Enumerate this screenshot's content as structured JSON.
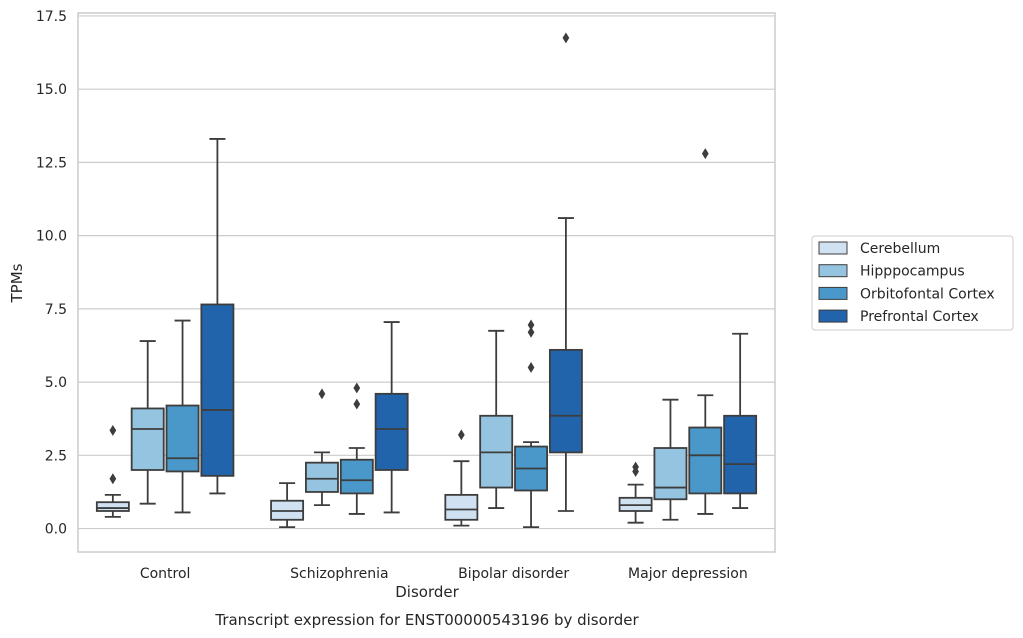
{
  "chart_data": {
    "type": "box",
    "title": "",
    "caption": "Transcript expression for ENST00000543196 by disorder",
    "xlabel": "Disorder",
    "ylabel": "TPMs",
    "ylim": [
      -0.8,
      17.6
    ],
    "yticks": [
      "0.0",
      "2.5",
      "5.0",
      "7.5",
      "10.0",
      "12.5",
      "15.0",
      "17.5"
    ],
    "ytick_values": [
      0,
      2.5,
      5,
      7.5,
      10,
      12.5,
      15,
      17.5
    ],
    "grid": "horizontal",
    "legend_position": "right",
    "categories": [
      "Control",
      "Schizophrenia",
      "Bipolar disorder",
      "Major depression"
    ],
    "series": [
      {
        "name": "Cerebellum",
        "color": "#d0e1f2",
        "boxes": [
          {
            "min": 0.4,
            "q1": 0.6,
            "median": 0.7,
            "q3": 0.9,
            "max": 1.15,
            "outliers": [
              1.7,
              3.35
            ]
          },
          {
            "min": 0.05,
            "q1": 0.3,
            "median": 0.6,
            "q3": 0.95,
            "max": 1.55,
            "outliers": []
          },
          {
            "min": 0.1,
            "q1": 0.3,
            "median": 0.65,
            "q3": 1.15,
            "max": 2.3,
            "outliers": [
              3.2
            ]
          },
          {
            "min": 0.2,
            "q1": 0.6,
            "median": 0.8,
            "q3": 1.05,
            "max": 1.5,
            "outliers": [
              1.95,
              2.1
            ]
          }
        ]
      },
      {
        "name": "Hipppocampus",
        "color": "#94c4df",
        "boxes": [
          {
            "min": 0.85,
            "q1": 2.0,
            "median": 3.4,
            "q3": 4.1,
            "max": 6.4,
            "outliers": []
          },
          {
            "min": 0.8,
            "q1": 1.25,
            "median": 1.7,
            "q3": 2.25,
            "max": 2.6,
            "outliers": [
              4.6
            ]
          },
          {
            "min": 0.7,
            "q1": 1.4,
            "median": 2.6,
            "q3": 3.85,
            "max": 6.75,
            "outliers": []
          },
          {
            "min": 0.3,
            "q1": 1.0,
            "median": 1.4,
            "q3": 2.75,
            "max": 4.4,
            "outliers": []
          }
        ]
      },
      {
        "name": "Orbitofontal Cortex",
        "color": "#4a98c9",
        "boxes": [
          {
            "min": 0.55,
            "q1": 1.95,
            "median": 2.4,
            "q3": 4.2,
            "max": 7.1,
            "outliers": []
          },
          {
            "min": 0.5,
            "q1": 1.2,
            "median": 1.65,
            "q3": 2.35,
            "max": 2.75,
            "outliers": [
              4.25,
              4.8
            ]
          },
          {
            "min": 0.05,
            "q1": 1.3,
            "median": 2.05,
            "q3": 2.8,
            "max": 2.95,
            "outliers": [
              5.5,
              6.7,
              6.95
            ]
          },
          {
            "min": 0.5,
            "q1": 1.2,
            "median": 2.5,
            "q3": 3.45,
            "max": 4.55,
            "outliers": [
              12.8
            ]
          }
        ]
      },
      {
        "name": "Prefrontal Cortex",
        "color": "#2164ab",
        "boxes": [
          {
            "min": 1.2,
            "q1": 1.8,
            "median": 4.05,
            "q3": 7.65,
            "max": 13.3,
            "outliers": []
          },
          {
            "min": 0.55,
            "q1": 2.0,
            "median": 3.4,
            "q3": 4.6,
            "max": 7.05,
            "outliers": []
          },
          {
            "min": 0.6,
            "q1": 2.6,
            "median": 3.85,
            "q3": 6.1,
            "max": 10.6,
            "outliers": [
              16.75
            ]
          },
          {
            "min": 0.7,
            "q1": 1.2,
            "median": 2.2,
            "q3": 3.85,
            "max": 6.65,
            "outliers": []
          }
        ]
      }
    ]
  }
}
